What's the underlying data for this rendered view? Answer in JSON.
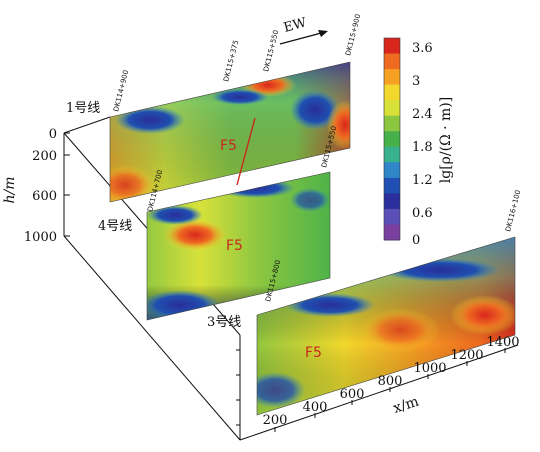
{
  "colors": {
    "scale": [
      "#7b3fa0",
      "#5a4fb8",
      "#2a2e9a",
      "#1f4fb0",
      "#2f86c8",
      "#39b18f",
      "#46b04a",
      "#8cc641",
      "#d7e13a",
      "#f2d82c",
      "#f6a023",
      "#ee6a21",
      "#d9261d"
    ]
  },
  "colorbar": {
    "label": "lg[ρ/(Ω · m)]",
    "ticks": [
      "3.6",
      "3",
      "2.4",
      "1.8",
      "1.2",
      "0.6",
      "0"
    ]
  },
  "depth_axis": {
    "label": "h/m",
    "ticks": [
      "0",
      "200",
      "600",
      "1000"
    ]
  },
  "x_axis": {
    "label": "x/m",
    "ticks": [
      "200",
      "400",
      "600",
      "800",
      "1000",
      "1200",
      "1400"
    ]
  },
  "direction_label": "EW",
  "sections": [
    {
      "label": "1号线",
      "stations": [
        "DK114+900",
        "DK115+375",
        "DK115+550",
        "DK115+900"
      ],
      "fault": "F5"
    },
    {
      "label": "4号线",
      "stations": [
        "DK114+700",
        "DK115+550"
      ],
      "fault": "F5"
    },
    {
      "label": "3号线",
      "stations": [
        "DK115+800",
        "DK116+100"
      ],
      "fault": "F5"
    }
  ]
}
